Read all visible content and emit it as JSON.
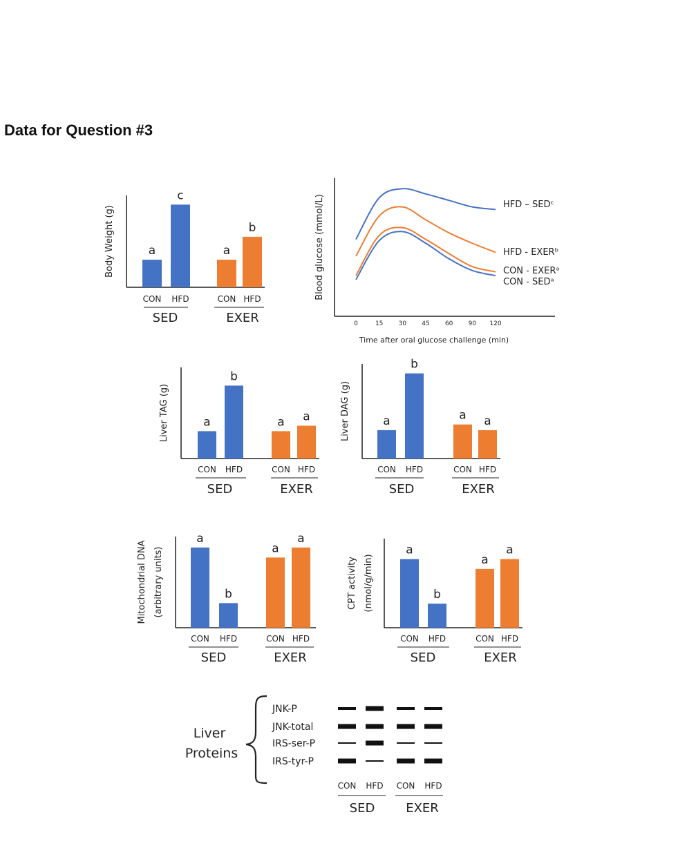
{
  "heading": "Data for Question #3",
  "colors": {
    "con": "#4472C4",
    "exer": "#ED7D31",
    "axis": "#222222"
  },
  "chart_data": [
    {
      "id": "body-weight",
      "type": "bar",
      "ylabel": "Body Weight (g)",
      "ylabel2": "",
      "categories": [
        "CON",
        "HFD",
        "CON",
        "HFD"
      ],
      "groups": [
        "SED",
        "EXER"
      ],
      "values": [
        0.3,
        0.9,
        0.3,
        0.55
      ],
      "letters": [
        "a",
        "c",
        "a",
        "b"
      ],
      "ylim": [
        0,
        1
      ]
    },
    {
      "id": "blood-glucose",
      "type": "line",
      "ylabel": "Blood glucose (mmol/L)",
      "xlabel": "Time after oral glucose challenge (min)",
      "x": [
        0,
        15,
        30,
        45,
        60,
        90,
        120
      ],
      "xticks": [
        "0",
        "15",
        "30",
        "45",
        "60",
        "90",
        "120"
      ],
      "ylim": [
        0,
        1
      ],
      "series": [
        {
          "name": "HFD – SEDᶜ",
          "color": "#4472C4",
          "values": [
            0.55,
            0.87,
            0.94,
            0.9,
            0.85,
            0.8,
            0.78
          ]
        },
        {
          "name": "HFD - EXERᵇ",
          "color": "#ED7D31",
          "values": [
            0.42,
            0.73,
            0.8,
            0.7,
            0.6,
            0.52,
            0.45
          ]
        },
        {
          "name": "CON - EXERᵃ",
          "color": "#ED7D31",
          "values": [
            0.27,
            0.58,
            0.64,
            0.55,
            0.44,
            0.34,
            0.3
          ]
        },
        {
          "name": "CON - SEDᵃ",
          "color": "#4472C4",
          "values": [
            0.24,
            0.54,
            0.61,
            0.52,
            0.4,
            0.31,
            0.27
          ]
        }
      ]
    },
    {
      "id": "liver-tag",
      "type": "bar",
      "ylabel": "Liver TAG (g)",
      "ylabel2": "",
      "categories": [
        "CON",
        "HFD",
        "CON",
        "HFD"
      ],
      "groups": [
        "SED",
        "EXER"
      ],
      "values": [
        0.3,
        0.8,
        0.3,
        0.36
      ],
      "letters": [
        "a",
        "b",
        "a",
        "a"
      ],
      "ylim": [
        0,
        1
      ]
    },
    {
      "id": "liver-dag",
      "type": "bar",
      "ylabel": "Liver DAG (g)",
      "ylabel2": "",
      "categories": [
        "CON",
        "HFD",
        "CON",
        "HFD"
      ],
      "groups": [
        "SED",
        "EXER"
      ],
      "values": [
        0.3,
        0.9,
        0.36,
        0.3
      ],
      "letters": [
        "a",
        "b",
        "a",
        "a"
      ],
      "ylim": [
        0,
        1
      ]
    },
    {
      "id": "mito-dna",
      "type": "bar",
      "ylabel": "Mitochondrial DNA",
      "ylabel2": "(arbitrary units)",
      "categories": [
        "CON",
        "HFD",
        "CON",
        "HFD"
      ],
      "groups": [
        "SED",
        "EXER"
      ],
      "values": [
        0.88,
        0.27,
        0.77,
        0.88
      ],
      "letters": [
        "a",
        "b",
        "a",
        "a"
      ],
      "ylim": [
        0,
        1
      ]
    },
    {
      "id": "cpt-activity",
      "type": "bar",
      "ylabel": "CPT activity",
      "ylabel2": "(nmol/g/min)",
      "categories": [
        "CON",
        "HFD",
        "CON",
        "HFD"
      ],
      "groups": [
        "SED",
        "EXER"
      ],
      "values": [
        0.77,
        0.27,
        0.66,
        0.77
      ],
      "letters": [
        "a",
        "b",
        "a",
        "a"
      ],
      "ylim": [
        0,
        1
      ]
    }
  ],
  "western_blot": {
    "title_line1": "Liver",
    "title_line2": "Proteins",
    "rows": [
      {
        "label": "JNK-P",
        "intensity": [
          2,
          3,
          2,
          2
        ]
      },
      {
        "label": "JNK-total",
        "intensity": [
          3,
          3,
          3,
          3
        ]
      },
      {
        "label": "IRS-ser-P",
        "intensity": [
          1,
          3,
          1,
          1
        ]
      },
      {
        "label": "IRS-tyr-P",
        "intensity": [
          3,
          1,
          3,
          3
        ]
      }
    ],
    "lanes": [
      "CON",
      "HFD",
      "CON",
      "HFD"
    ],
    "groups": [
      "SED",
      "EXER"
    ]
  }
}
